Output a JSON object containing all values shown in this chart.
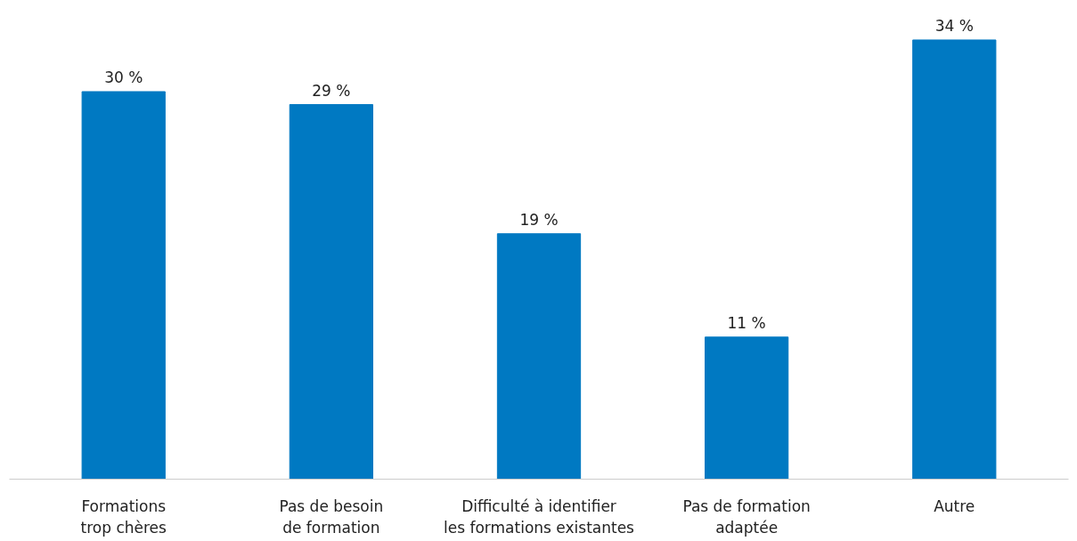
{
  "chart_data": {
    "type": "bar",
    "categories": [
      "Formations\ntrop chères",
      "Pas de besoin\nde formation",
      "Difficulté à identifier\nles formations existantes",
      "Pas de formation\nadaptée",
      "Autre"
    ],
    "values": [
      30,
      29,
      19,
      11,
      34
    ],
    "value_labels": [
      "30 %",
      "29 %",
      "19 %",
      "11 %",
      "34 %"
    ],
    "color": "#0079c2",
    "grid": false
  }
}
